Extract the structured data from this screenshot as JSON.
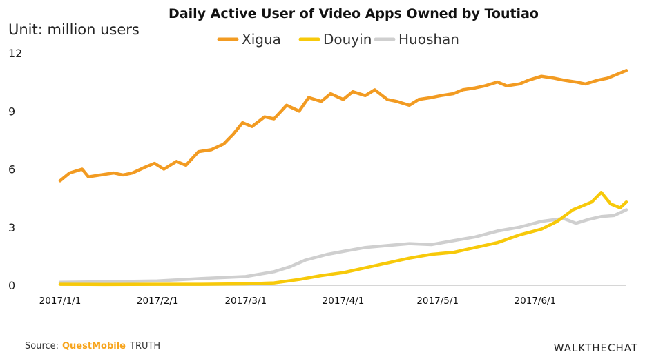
{
  "chart_data": {
    "type": "line",
    "title": "Daily Active User of Video Apps Owned by Toutiao",
    "unit_label": "Unit: million users",
    "xlabel": "",
    "ylabel": "",
    "ylim": [
      0,
      12
    ],
    "yticks": [
      "0",
      "3",
      "6",
      "9",
      "12"
    ],
    "xlim": [
      "2017-01-01",
      "2017-06-30"
    ],
    "xticks": [
      {
        "date": "2017-01-01",
        "label": "2017/1/1"
      },
      {
        "date": "2017-02-01",
        "label": "2017/2/1"
      },
      {
        "date": "2017-03-01",
        "label": "2017/3/1"
      },
      {
        "date": "2017-04-01",
        "label": "2017/4/1"
      },
      {
        "date": "2017-05-01",
        "label": "2017/5/1"
      },
      {
        "date": "2017-06-01",
        "label": "2017/6/1"
      }
    ],
    "grid": false,
    "legend_position": "top-center",
    "series": [
      {
        "name": "Xigua",
        "color": "#f29b22",
        "x": [
          "2017-01-01",
          "2017-01-04",
          "2017-01-08",
          "2017-01-10",
          "2017-01-14",
          "2017-01-18",
          "2017-01-21",
          "2017-01-24",
          "2017-01-28",
          "2017-01-31",
          "2017-02-03",
          "2017-02-07",
          "2017-02-10",
          "2017-02-14",
          "2017-02-18",
          "2017-02-22",
          "2017-02-25",
          "2017-02-28",
          "2017-03-03",
          "2017-03-07",
          "2017-03-10",
          "2017-03-14",
          "2017-03-18",
          "2017-03-21",
          "2017-03-25",
          "2017-03-28",
          "2017-04-01",
          "2017-04-04",
          "2017-04-08",
          "2017-04-11",
          "2017-04-15",
          "2017-04-18",
          "2017-04-22",
          "2017-04-25",
          "2017-04-29",
          "2017-05-02",
          "2017-05-06",
          "2017-05-09",
          "2017-05-13",
          "2017-05-16",
          "2017-05-20",
          "2017-05-23",
          "2017-05-27",
          "2017-05-30",
          "2017-06-03",
          "2017-06-07",
          "2017-06-10",
          "2017-06-14",
          "2017-06-17",
          "2017-06-21",
          "2017-06-24",
          "2017-06-27",
          "2017-06-30"
        ],
        "values": [
          5.4,
          5.8,
          6.0,
          5.6,
          5.7,
          5.8,
          5.7,
          5.8,
          6.1,
          6.3,
          6.0,
          6.4,
          6.2,
          6.9,
          7.0,
          7.3,
          7.8,
          8.4,
          8.2,
          8.7,
          8.6,
          9.3,
          9.0,
          9.7,
          9.5,
          9.9,
          9.6,
          10.0,
          9.8,
          10.1,
          9.6,
          9.5,
          9.3,
          9.6,
          9.7,
          9.8,
          9.9,
          10.1,
          10.2,
          10.3,
          10.5,
          10.3,
          10.4,
          10.6,
          10.8,
          10.7,
          10.6,
          10.5,
          10.4,
          10.6,
          10.7,
          10.9,
          11.1
        ]
      },
      {
        "name": "Douyin",
        "color": "#f7c90a",
        "x": [
          "2017-01-01",
          "2017-01-15",
          "2017-02-01",
          "2017-02-15",
          "2017-03-01",
          "2017-03-10",
          "2017-03-18",
          "2017-03-25",
          "2017-04-01",
          "2017-04-08",
          "2017-04-15",
          "2017-04-22",
          "2017-04-29",
          "2017-05-06",
          "2017-05-13",
          "2017-05-20",
          "2017-05-27",
          "2017-06-03",
          "2017-06-08",
          "2017-06-13",
          "2017-06-16",
          "2017-06-19",
          "2017-06-22",
          "2017-06-25",
          "2017-06-28",
          "2017-06-30"
        ],
        "values": [
          0.05,
          0.04,
          0.05,
          0.05,
          0.07,
          0.12,
          0.3,
          0.5,
          0.65,
          0.9,
          1.15,
          1.4,
          1.6,
          1.7,
          1.95,
          2.2,
          2.6,
          2.9,
          3.3,
          3.9,
          4.1,
          4.3,
          4.8,
          4.2,
          4.0,
          4.3
        ]
      },
      {
        "name": "Huoshan",
        "color": "#cfcfcf",
        "x": [
          "2017-01-01",
          "2017-01-15",
          "2017-02-01",
          "2017-02-15",
          "2017-03-01",
          "2017-03-10",
          "2017-03-15",
          "2017-03-20",
          "2017-03-27",
          "2017-04-01",
          "2017-04-08",
          "2017-04-15",
          "2017-04-22",
          "2017-04-29",
          "2017-05-06",
          "2017-05-13",
          "2017-05-20",
          "2017-05-27",
          "2017-06-03",
          "2017-06-10",
          "2017-06-14",
          "2017-06-18",
          "2017-06-22",
          "2017-06-26",
          "2017-06-30"
        ],
        "values": [
          0.15,
          0.18,
          0.22,
          0.35,
          0.45,
          0.7,
          0.95,
          1.3,
          1.6,
          1.75,
          1.95,
          2.05,
          2.15,
          2.1,
          2.3,
          2.5,
          2.8,
          3.0,
          3.3,
          3.45,
          3.2,
          3.4,
          3.55,
          3.6,
          3.9
        ]
      }
    ]
  },
  "footer": {
    "source_label": "Source:",
    "source_brand": "QuestMobile",
    "source_brand_suffix": "TRUTH",
    "watermark": "WALKTHECHAT"
  }
}
